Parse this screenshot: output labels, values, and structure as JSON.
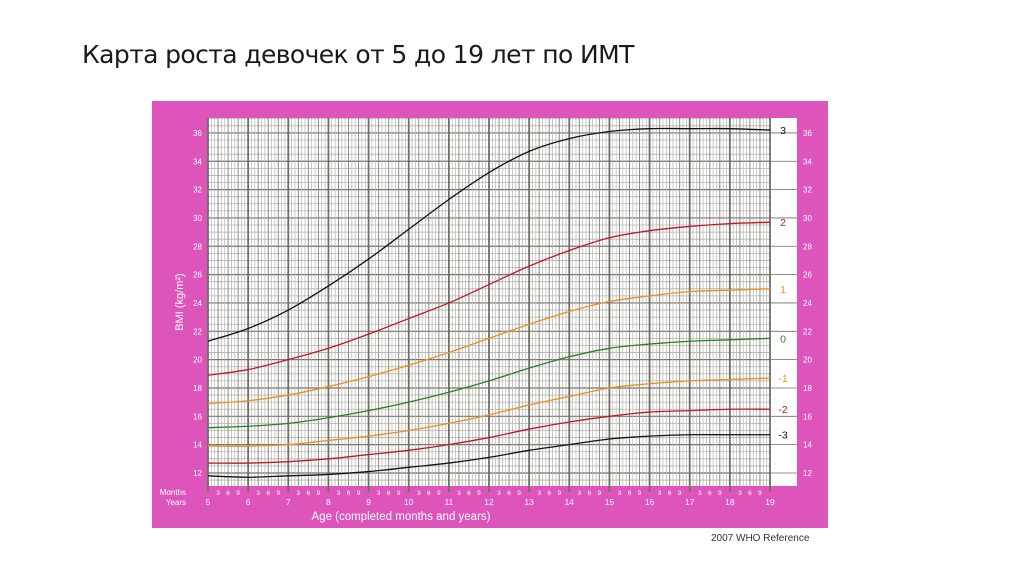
{
  "slide": {
    "title": "Карта роста девочек от 5 до 19 лет по ИМТ"
  },
  "chart_data": {
    "type": "line",
    "title": "Карта роста девочек от 5 до 19 лет по ИМТ",
    "xlabel": "Age (completed months and years)",
    "ylabel": "BMI (kg/m²)",
    "x_row_labels": {
      "months": "Months",
      "years": "Years"
    },
    "x_ticks_years": [
      5,
      6,
      7,
      8,
      9,
      10,
      11,
      12,
      13,
      14,
      15,
      16,
      17,
      18,
      19
    ],
    "x_ticks_months": [
      3,
      6,
      9
    ],
    "y_ticks": [
      12,
      14,
      16,
      18,
      20,
      22,
      24,
      26,
      28,
      30,
      32,
      34,
      36
    ],
    "xlim": [
      5,
      19
    ],
    "ylim": [
      11,
      37.4
    ],
    "grid": true,
    "legend_position": "right",
    "footer": "2007 WHO Reference",
    "x": [
      5,
      6,
      7,
      8,
      9,
      10,
      11,
      12,
      13,
      14,
      15,
      16,
      17,
      18,
      19
    ],
    "series": [
      {
        "name": "3",
        "color": "#111111",
        "values": [
          21.3,
          22.2,
          23.5,
          25.2,
          27.1,
          29.2,
          31.3,
          33.2,
          34.7,
          35.6,
          36.1,
          36.3,
          36.3,
          36.3,
          36.2
        ]
      },
      {
        "name": "2",
        "color": "#c0182a",
        "values": [
          18.9,
          19.3,
          20.0,
          20.8,
          21.8,
          22.9,
          24.0,
          25.3,
          26.6,
          27.7,
          28.6,
          29.1,
          29.4,
          29.6,
          29.7
        ]
      },
      {
        "name": "1",
        "color": "#f08c22",
        "values": [
          16.9,
          17.1,
          17.5,
          18.1,
          18.8,
          19.6,
          20.5,
          21.5,
          22.5,
          23.4,
          24.1,
          24.5,
          24.8,
          24.9,
          25.0
        ]
      },
      {
        "name": "0",
        "color": "#2a7e2a",
        "values": [
          15.2,
          15.3,
          15.5,
          15.9,
          16.4,
          17.0,
          17.7,
          18.5,
          19.4,
          20.2,
          20.8,
          21.1,
          21.3,
          21.4,
          21.5
        ]
      },
      {
        "name": "-1",
        "color": "#f08c22",
        "values": [
          13.9,
          13.9,
          14.0,
          14.3,
          14.6,
          15.0,
          15.5,
          16.1,
          16.8,
          17.4,
          18.0,
          18.3,
          18.5,
          18.6,
          18.7
        ]
      },
      {
        "name": "-2",
        "color": "#c0182a",
        "values": [
          12.7,
          12.7,
          12.8,
          13.0,
          13.3,
          13.6,
          14.0,
          14.5,
          15.1,
          15.6,
          16.0,
          16.3,
          16.4,
          16.5,
          16.5
        ]
      },
      {
        "name": "-3",
        "color": "#111111",
        "values": [
          11.8,
          11.7,
          11.8,
          11.9,
          12.1,
          12.4,
          12.7,
          13.1,
          13.6,
          14.0,
          14.4,
          14.6,
          14.7,
          14.7,
          14.7
        ]
      }
    ]
  },
  "colors": {
    "panel": "#dd55bb",
    "axis_text": "#ffffff",
    "grid_major": "#6e6e66",
    "grid_minor": "#b4b4ac"
  }
}
